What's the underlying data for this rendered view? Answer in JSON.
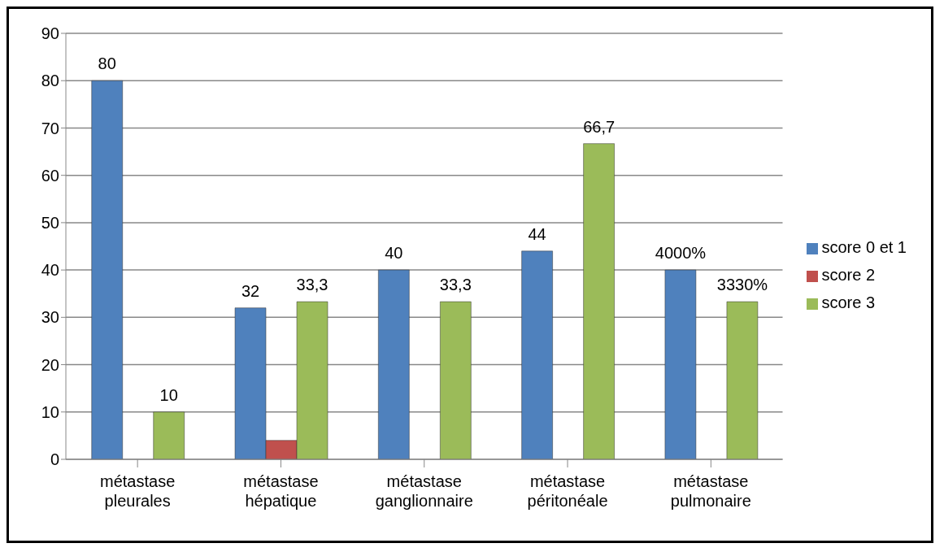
{
  "chart_data": {
    "type": "bar",
    "categories": [
      "métastase pleurales",
      "métastase hépatique",
      "métastase ganglionnaire",
      "métastase péritonéale",
      "métastase pulmonaire"
    ],
    "series": [
      {
        "name": "score 0 et 1",
        "color": "#4f81bd",
        "values": [
          80,
          32,
          40,
          44,
          40
        ],
        "value_labels": [
          "80",
          "32",
          "40",
          "44",
          "4000%"
        ]
      },
      {
        "name": "score 2",
        "color": "#c0504d",
        "values": [
          null,
          4,
          null,
          null,
          null
        ],
        "value_labels": [
          null,
          null,
          null,
          null,
          null
        ]
      },
      {
        "name": "score 3",
        "color": "#9bbb59",
        "values": [
          10,
          33.3,
          33.3,
          66.7,
          33.3
        ],
        "value_labels": [
          "10",
          "33,3",
          "33,3",
          "66,7",
          "3330%"
        ]
      }
    ],
    "ylim": [
      0,
      90
    ],
    "yticks": [
      0,
      10,
      20,
      30,
      40,
      50,
      60,
      70,
      80,
      90
    ],
    "grid": "y",
    "legend": "right"
  }
}
